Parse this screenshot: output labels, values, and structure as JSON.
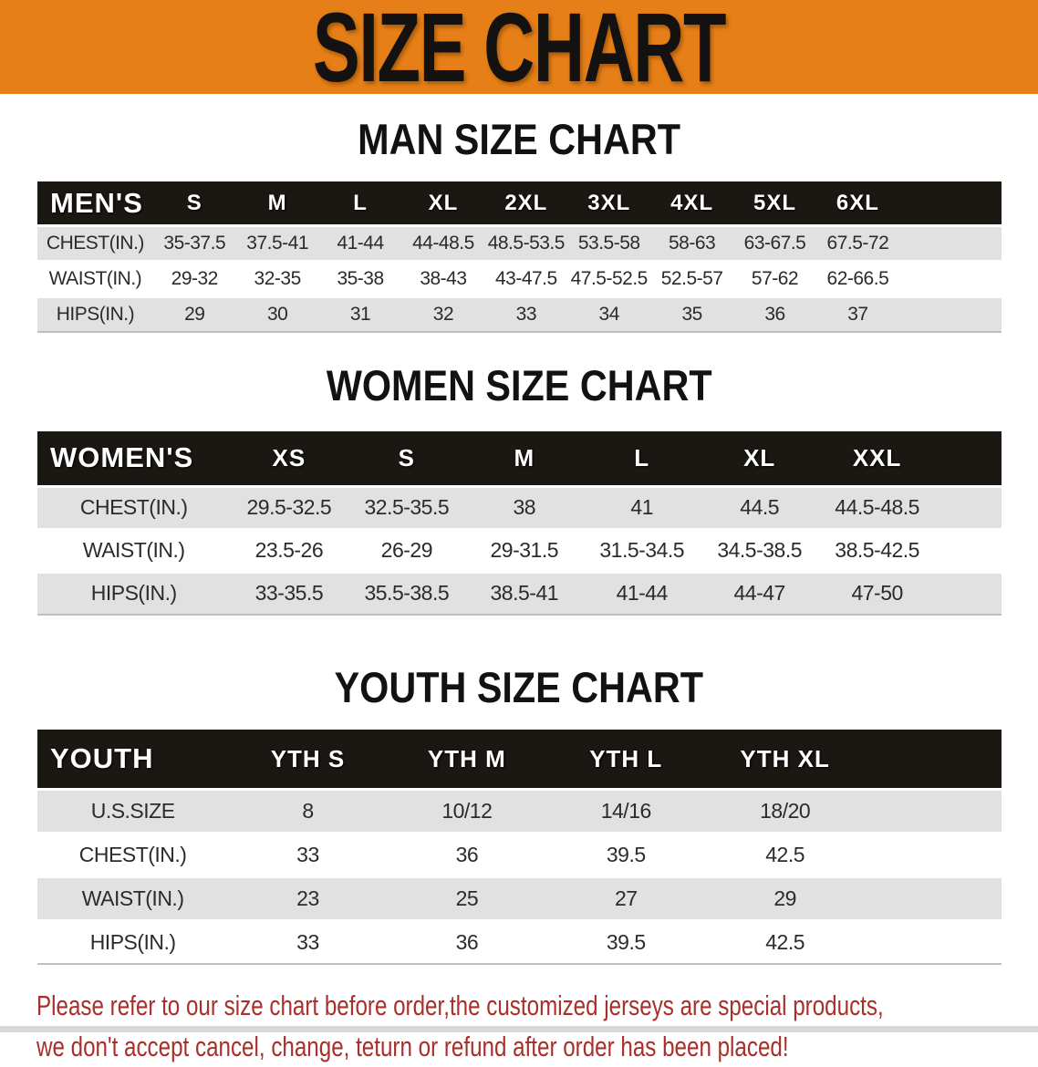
{
  "banner": {
    "title": "SIZE CHART"
  },
  "colors": {
    "banner_bg": "#E67F17",
    "header_bar": "#1B1713",
    "row_gray": "#E1E1E1",
    "note_red": "#A9302A"
  },
  "sections": [
    {
      "heading": "MAN SIZE CHART",
      "corner_label": "MEN'S",
      "columns": [
        "S",
        "M",
        "L",
        "XL",
        "2XL",
        "3XL",
        "4XL",
        "5XL",
        "6XL"
      ],
      "rows": [
        {
          "label": "CHEST(IN.)",
          "values": [
            "35-37.5",
            "37.5-41",
            "41-44",
            "44-48.5",
            "48.5-53.5",
            "53.5-58",
            "58-63",
            "63-67.5",
            "67.5-72"
          ]
        },
        {
          "label": "WAIST(IN.)",
          "values": [
            "29-32",
            "32-35",
            "35-38",
            "38-43",
            "43-47.5",
            "47.5-52.5",
            "52.5-57",
            "57-62",
            "62-66.5"
          ]
        },
        {
          "label": "HIPS(IN.)",
          "values": [
            "29",
            "30",
            "31",
            "32",
            "33",
            "34",
            "35",
            "36",
            "37"
          ]
        }
      ]
    },
    {
      "heading": "WOMEN SIZE CHART",
      "corner_label": "WOMEN'S",
      "columns": [
        "XS",
        "S",
        "M",
        "L",
        "XL",
        "XXL"
      ],
      "rows": [
        {
          "label": "CHEST(IN.)",
          "values": [
            "29.5-32.5",
            "32.5-35.5",
            "38",
            "41",
            "44.5",
            "44.5-48.5"
          ]
        },
        {
          "label": "WAIST(IN.)",
          "values": [
            "23.5-26",
            "26-29",
            "29-31.5",
            "31.5-34.5",
            "34.5-38.5",
            "38.5-42.5"
          ]
        },
        {
          "label": "HIPS(IN.)",
          "values": [
            "33-35.5",
            "35.5-38.5",
            "38.5-41",
            "41-44",
            "44-47",
            "47-50"
          ]
        }
      ]
    },
    {
      "heading": "YOUTH SIZE CHART",
      "corner_label": "YOUTH",
      "columns": [
        "YTH S",
        "YTH M",
        "YTH L",
        "YTH XL"
      ],
      "rows": [
        {
          "label": "U.S.SIZE",
          "values": [
            "8",
            "10/12",
            "14/16",
            "18/20"
          ]
        },
        {
          "label": "CHEST(IN.)",
          "values": [
            "33",
            "36",
            "39.5",
            "42.5"
          ]
        },
        {
          "label": "WAIST(IN.)",
          "values": [
            "23",
            "25",
            "27",
            "29"
          ]
        },
        {
          "label": "HIPS(IN.)",
          "values": [
            "33",
            "36",
            "39.5",
            "42.5"
          ]
        }
      ]
    }
  ],
  "footnote": {
    "line1": "Please refer to our size chart before order,the customized jerseys are special products,",
    "line2": "we don't accept cancel, change, teturn or refund after order has been placed!"
  }
}
